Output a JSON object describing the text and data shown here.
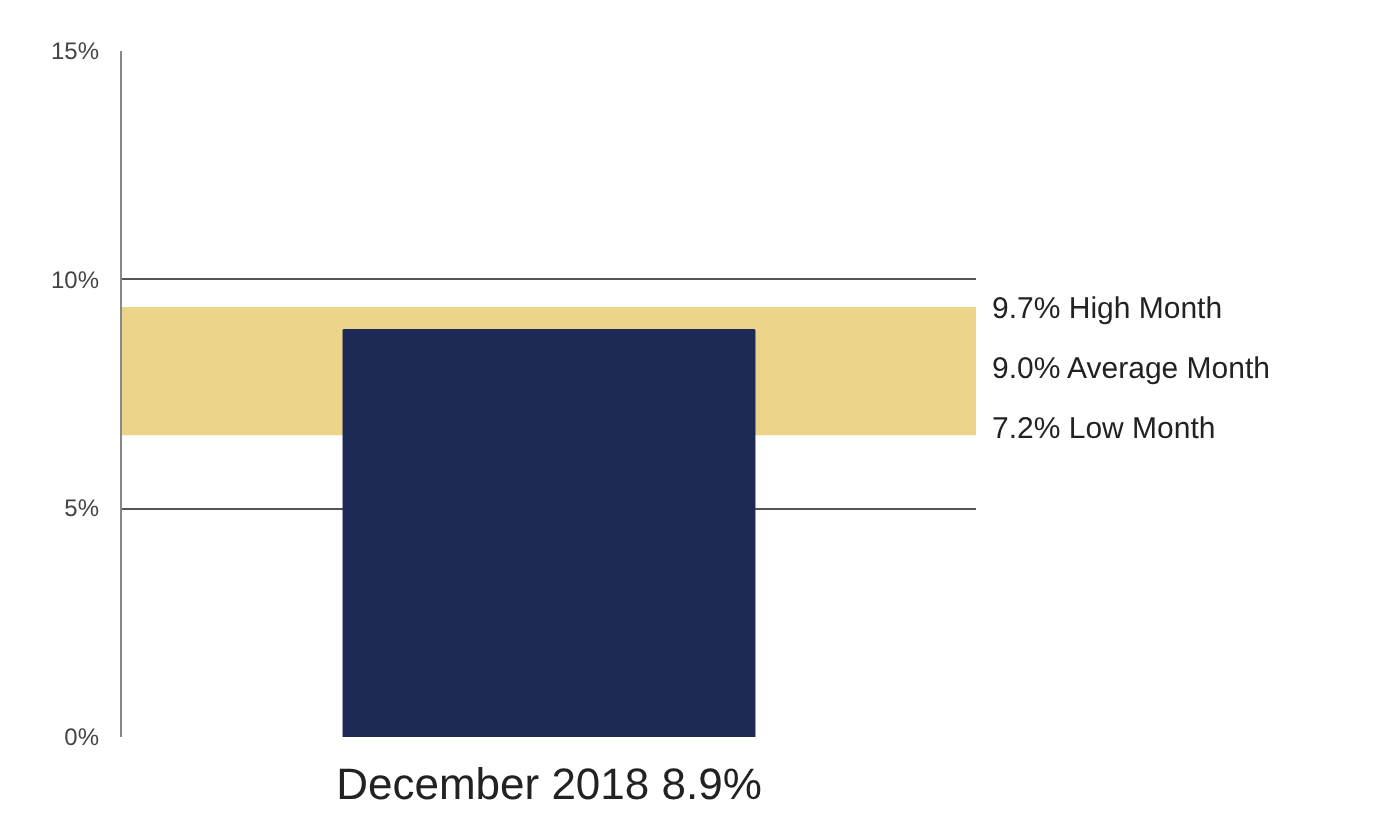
{
  "chart_data": {
    "type": "bar",
    "categories": [
      "December 2018 8.9%"
    ],
    "values": [
      8.9
    ],
    "color": "#1c2a55",
    "ylim": [
      0,
      15
    ],
    "yticks": [
      {
        "value": 0,
        "label": "0%"
      },
      {
        "value": 5,
        "label": "5%"
      },
      {
        "value": 10,
        "label": "10%"
      },
      {
        "value": 15,
        "label": "15%"
      }
    ],
    "grid": "y",
    "bands": [
      {
        "axis": "y",
        "from": 6.6,
        "to": 9.4,
        "color": "#ecd58a"
      }
    ],
    "annotations": [
      "9.7% High Month",
      "9.0% Average Month",
      "7.2% Low Month"
    ]
  }
}
